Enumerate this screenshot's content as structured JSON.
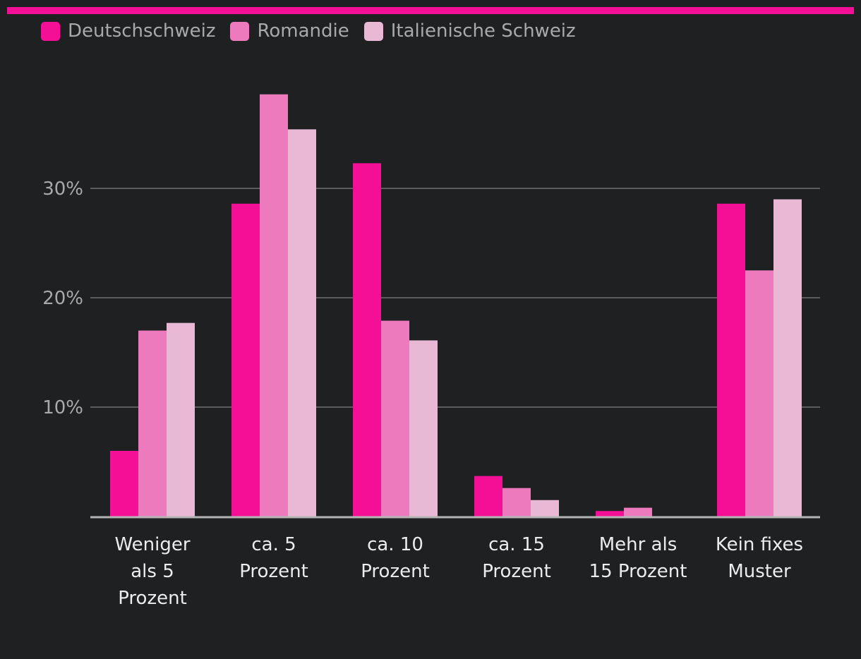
{
  "colors": {
    "background": "#1f2022",
    "accent_bar": "#f40f97",
    "grid": "#5b5b5d",
    "axis": "#b5b5b5"
  },
  "chart_data": {
    "type": "bar",
    "title": "",
    "xlabel": "",
    "ylabel": "",
    "ylim": [
      0,
      40
    ],
    "yticks": [
      10,
      20,
      30
    ],
    "ytick_labels": [
      "10%",
      "20%",
      "30%"
    ],
    "grid": true,
    "legend_position": "top-left",
    "categories": [
      [
        "Weniger",
        "als 5",
        "Prozent"
      ],
      [
        "ca. 5",
        "Prozent"
      ],
      [
        "ca. 10",
        "Prozent"
      ],
      [
        "ca. 15",
        "Prozent"
      ],
      [
        "Mehr als",
        "15 Prozent"
      ],
      [
        "Kein fixes",
        "Muster"
      ]
    ],
    "series": [
      {
        "name": "Deutschschweiz",
        "color": "#f40f97",
        "values": [
          6.0,
          28.6,
          32.3,
          3.7,
          0.5,
          28.6
        ]
      },
      {
        "name": "Romandie",
        "color": "#ed7abd",
        "values": [
          17.0,
          38.6,
          17.9,
          2.6,
          0.8,
          22.5
        ]
      },
      {
        "name": "Italienische Schweiz",
        "color": "#e9b8d5",
        "values": [
          17.7,
          35.4,
          16.1,
          1.5,
          0.0,
          29.0
        ]
      }
    ]
  }
}
